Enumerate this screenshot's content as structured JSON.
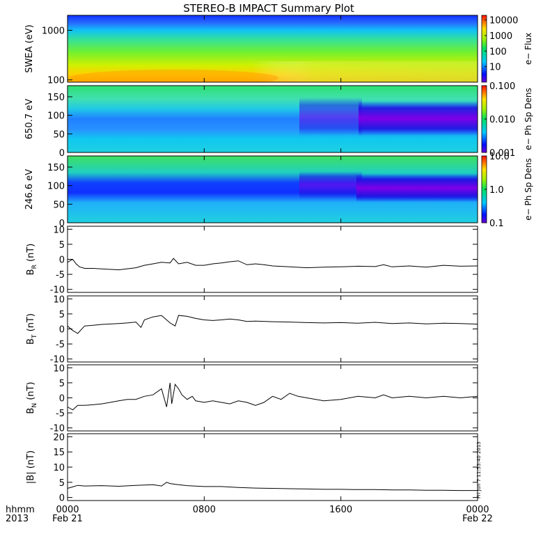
{
  "chart_data": {
    "type": "multi-panel",
    "title": "STEREO-B IMPACT Summary Plot",
    "x_axis": {
      "row1_label": "hhmm",
      "row2_label": "2013",
      "ticks": [
        {
          "t": 0,
          "line1": "0000",
          "line2": "Feb 21"
        },
        {
          "t": 8,
          "line1": "0800",
          "line2": ""
        },
        {
          "t": 16,
          "line1": "1600",
          "line2": ""
        },
        {
          "t": 24,
          "line1": "0000",
          "line2": "Feb 22"
        }
      ],
      "range_hours": [
        0,
        24
      ]
    },
    "spectrograms": [
      {
        "ylabel": "SWEA (eV)",
        "yscale": "log",
        "ylim": [
          90,
          2000
        ],
        "yticks": [
          {
            "v": 100,
            "label": "100"
          },
          {
            "v": 1000,
            "label": "1000"
          }
        ],
        "colorbar": {
          "label": "e− Flux",
          "scale": "log",
          "range": [
            1,
            20000
          ],
          "ticks": [
            {
              "v": 10,
              "label": "10"
            },
            {
              "v": 100,
              "label": "100"
            },
            {
              "v": 1000,
              "label": "1000"
            },
            {
              "v": 10000,
              "label": "10000"
            }
          ]
        }
      },
      {
        "ylabel": "650.7 eV",
        "yscale": "linear",
        "ylim": [
          0,
          180
        ],
        "yticks": [
          {
            "v": 0,
            "label": "0"
          },
          {
            "v": 50,
            "label": "50"
          },
          {
            "v": 100,
            "label": "100"
          },
          {
            "v": 150,
            "label": "150"
          }
        ],
        "colorbar": {
          "label": "e− Ph Sp Dens",
          "scale": "log",
          "range": [
            0.001,
            0.1
          ],
          "ticks": [
            {
              "v": 0.001,
              "label": "0.001"
            },
            {
              "v": 0.01,
              "label": "0.010"
            },
            {
              "v": 0.1,
              "label": "0.100"
            }
          ]
        }
      },
      {
        "ylabel": "246.6 eV",
        "yscale": "linear",
        "ylim": [
          0,
          180
        ],
        "yticks": [
          {
            "v": 0,
            "label": "0"
          },
          {
            "v": 50,
            "label": "50"
          },
          {
            "v": 100,
            "label": "100"
          },
          {
            "v": 150,
            "label": "150"
          }
        ],
        "colorbar": {
          "label": "e− Ph Sp Dens",
          "scale": "log",
          "range": [
            0.1,
            10
          ],
          "ticks": [
            {
              "v": 0.1,
              "label": "0.1"
            },
            {
              "v": 1,
              "label": "1.0"
            },
            {
              "v": 10,
              "label": "10.0"
            }
          ]
        }
      }
    ],
    "line_panels": [
      {
        "ylabel": "B",
        "ysub": "R",
        "yunit": " (nT)",
        "ylim": [
          -11,
          11
        ],
        "yticks": [
          -10,
          -5,
          0,
          5,
          10
        ],
        "x": [
          0,
          0.3,
          0.5,
          0.7,
          1,
          1.5,
          2,
          3,
          4,
          4.5,
          5,
          5.5,
          6,
          6.2,
          6.5,
          7,
          7.5,
          8,
          8.5,
          9,
          9.5,
          10,
          10.5,
          11,
          11.5,
          12,
          13,
          14,
          15,
          16,
          17,
          18,
          18.5,
          19,
          20,
          21,
          22,
          23,
          24
        ],
        "y": [
          -1,
          0,
          -1.5,
          -2.5,
          -3,
          -3,
          -3.2,
          -3.5,
          -2.8,
          -2,
          -1.5,
          -1,
          -1.2,
          0.3,
          -1.5,
          -1,
          -2,
          -2,
          -1.5,
          -1.2,
          -0.8,
          -0.5,
          -1.8,
          -1.5,
          -1.8,
          -2.2,
          -2.5,
          -2.8,
          -2.6,
          -2.5,
          -2.3,
          -2.4,
          -1.8,
          -2.5,
          -2.2,
          -2.6,
          -2.0,
          -2.3,
          -2.2
        ]
      },
      {
        "ylabel": "B",
        "ysub": "T",
        "yunit": " (nT)",
        "ylim": [
          -11,
          11
        ],
        "yticks": [
          -10,
          -5,
          0,
          5,
          10
        ],
        "x": [
          0,
          0.3,
          0.6,
          1,
          1.5,
          2,
          3,
          3.5,
          4,
          4.3,
          4.5,
          5,
          5.5,
          6,
          6.3,
          6.5,
          7,
          7.5,
          8,
          8.5,
          9,
          9.5,
          10,
          10.5,
          11,
          12,
          13,
          14,
          15,
          16,
          17,
          18,
          19,
          20,
          21,
          22,
          23,
          24
        ],
        "y": [
          1,
          -0.5,
          -1.5,
          1,
          1.2,
          1.5,
          1.8,
          2.0,
          2.3,
          0.5,
          3,
          4,
          4.5,
          2,
          1,
          4.5,
          4.2,
          3.5,
          3,
          2.8,
          3,
          3.3,
          3,
          2.5,
          2.6,
          2.4,
          2.3,
          2.1,
          2,
          2.1,
          1.9,
          2.2,
          1.8,
          2,
          1.7,
          1.9,
          1.8,
          1.6
        ]
      },
      {
        "ylabel": "B",
        "ysub": "N",
        "yunit": " (nT)",
        "ylim": [
          -11,
          11
        ],
        "yticks": [
          -10,
          -5,
          0,
          5,
          10
        ],
        "x": [
          0,
          0.3,
          0.6,
          1,
          1.5,
          2,
          2.5,
          3,
          3.5,
          4,
          4.5,
          5,
          5.5,
          5.8,
          6,
          6.1,
          6.3,
          6.5,
          6.7,
          7,
          7.3,
          7.5,
          8,
          8.5,
          9,
          9.5,
          10,
          10.5,
          11,
          11.5,
          12,
          12.5,
          13,
          13.5,
          14,
          15,
          16,
          17,
          18,
          18.5,
          19,
          20,
          21,
          22,
          23,
          24
        ],
        "y": [
          -3,
          -4,
          -2.5,
          -2.5,
          -2.3,
          -2,
          -1.5,
          -1,
          -0.5,
          -0.5,
          0.5,
          1,
          3,
          -3,
          5,
          -2,
          4.5,
          3,
          1,
          -0.5,
          0.5,
          -1,
          -1.5,
          -1,
          -1.5,
          -2,
          -1,
          -1.5,
          -2.5,
          -1.5,
          0.5,
          -0.5,
          1.5,
          0.5,
          0,
          -1,
          -0.5,
          0.5,
          0,
          1,
          0,
          0.5,
          0,
          0.5,
          0,
          0.5
        ]
      },
      {
        "ylabel": "|B|",
        "ysub": "",
        "yunit": " (nT)",
        "ylim": [
          -1,
          21
        ],
        "yticks": [
          0,
          5,
          10,
          15,
          20
        ],
        "x": [
          0,
          0.3,
          0.6,
          1,
          2,
          3,
          4,
          5,
          5.5,
          5.8,
          6,
          6.5,
          7,
          8,
          9,
          10,
          11,
          12,
          13,
          14,
          15,
          16,
          17,
          18,
          19,
          20,
          21,
          22,
          23,
          24
        ],
        "y": [
          3,
          3.5,
          4,
          3.8,
          3.9,
          3.7,
          4,
          4.2,
          3.8,
          5,
          4.6,
          4.2,
          3.9,
          3.6,
          3.6,
          3.3,
          3.1,
          3.0,
          2.9,
          2.8,
          2.7,
          2.7,
          2.6,
          2.6,
          2.5,
          2.5,
          2.4,
          2.4,
          2.3,
          2.3
        ]
      }
    ],
    "stamp": "Fri Jun  7 11:53:40 2013"
  }
}
